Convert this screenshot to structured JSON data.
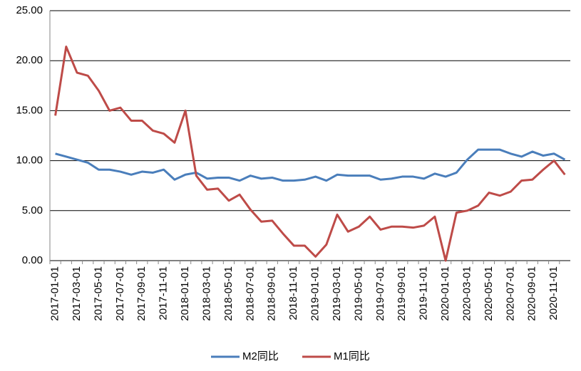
{
  "chart_data": {
    "type": "line",
    "categories": [
      "2017-01-01",
      null,
      "2017-03-01",
      null,
      "2017-05-01",
      null,
      "2017-07-01",
      null,
      "2017-09-01",
      null,
      "2017-11-01",
      null,
      "2018-01-01",
      null,
      "2018-03-01",
      null,
      "2018-05-01",
      null,
      "2018-07-01",
      null,
      "2018-09-01",
      null,
      "2018-11-01",
      null,
      "2019-01-01",
      null,
      "2019-03-01",
      null,
      "2019-05-01",
      null,
      "2019-07-01",
      null,
      "2019-09-01",
      null,
      "2019-11-01",
      null,
      "2020-01-01",
      null,
      "2020-03-01",
      null,
      "2020-05-01",
      null,
      "2020-07-01",
      null,
      "2020-09-01",
      null,
      "2020-11-01",
      null
    ],
    "series": [
      {
        "name": "M2同比",
        "color": "#4a7ebb",
        "values": [
          10.7,
          10.4,
          10.1,
          9.8,
          9.1,
          9.1,
          8.9,
          8.6,
          8.9,
          8.8,
          9.1,
          8.1,
          8.6,
          8.8,
          8.2,
          8.3,
          8.3,
          8.0,
          8.5,
          8.2,
          8.3,
          8.0,
          8.0,
          8.1,
          8.4,
          8.0,
          8.6,
          8.5,
          8.5,
          8.5,
          8.1,
          8.2,
          8.4,
          8.4,
          8.2,
          8.7,
          8.4,
          8.8,
          10.1,
          11.1,
          11.1,
          11.1,
          10.7,
          10.4,
          10.9,
          10.5,
          10.7,
          10.1
        ]
      },
      {
        "name": "M1同比",
        "color": "#be4b48",
        "values": [
          14.5,
          21.4,
          18.8,
          18.5,
          17.0,
          15.0,
          15.3,
          14.0,
          14.0,
          13.0,
          12.7,
          11.8,
          15.0,
          8.5,
          7.1,
          7.2,
          6.0,
          6.6,
          5.1,
          3.9,
          4.0,
          2.7,
          1.5,
          1.5,
          0.4,
          1.6,
          4.6,
          2.9,
          3.4,
          4.4,
          3.1,
          3.4,
          3.4,
          3.3,
          3.5,
          4.4,
          0.0,
          4.8,
          5.0,
          5.5,
          6.8,
          6.5,
          6.9,
          8.0,
          8.1,
          9.1,
          10.0,
          8.6
        ]
      }
    ],
    "ylim": [
      0,
      25
    ],
    "yticks": [
      {
        "value": 0,
        "label": "0.00"
      },
      {
        "value": 5,
        "label": "5.00"
      },
      {
        "value": 10,
        "label": "10.00"
      },
      {
        "value": 15,
        "label": "15.00"
      },
      {
        "value": 20,
        "label": "20.00"
      },
      {
        "value": 25,
        "label": "25.00"
      }
    ],
    "grid": true,
    "legend": "bottom"
  }
}
